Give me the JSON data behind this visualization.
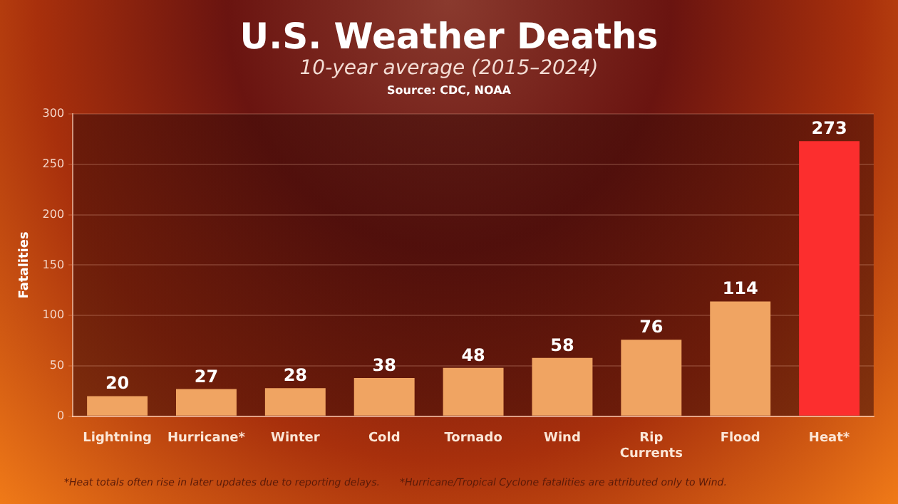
{
  "chart_data": {
    "type": "bar",
    "title": "U.S. Weather Deaths",
    "subtitle": "10-year average (2015–2024)",
    "ylabel": "Fatalities",
    "categories": [
      "Lightning",
      "Hurricane*",
      "Winter",
      "Cold",
      "Tornado",
      "Wind",
      "Rip Currents",
      "Flood",
      "Heat*"
    ],
    "values": [
      20,
      27,
      28,
      38,
      48,
      58,
      76,
      114,
      273
    ],
    "colors": [
      "#f0a462",
      "#f0a462",
      "#f0a462",
      "#f0a462",
      "#f0a462",
      "#f0a462",
      "#f0a462",
      "#f0a462",
      "#fc2e2e"
    ],
    "ylim": [
      0,
      300
    ],
    "yticks": [
      0,
      50,
      100,
      150,
      200,
      250,
      300
    ],
    "grid": "y",
    "data_labels": true,
    "legend": false,
    "annotations": [
      "Source: CDC, NOAA",
      "*Heat totals often rise in later updates due to reporting delays.",
      "*Hurricane/Tropical Cyclone fatalities are attributed only to Wind."
    ]
  }
}
